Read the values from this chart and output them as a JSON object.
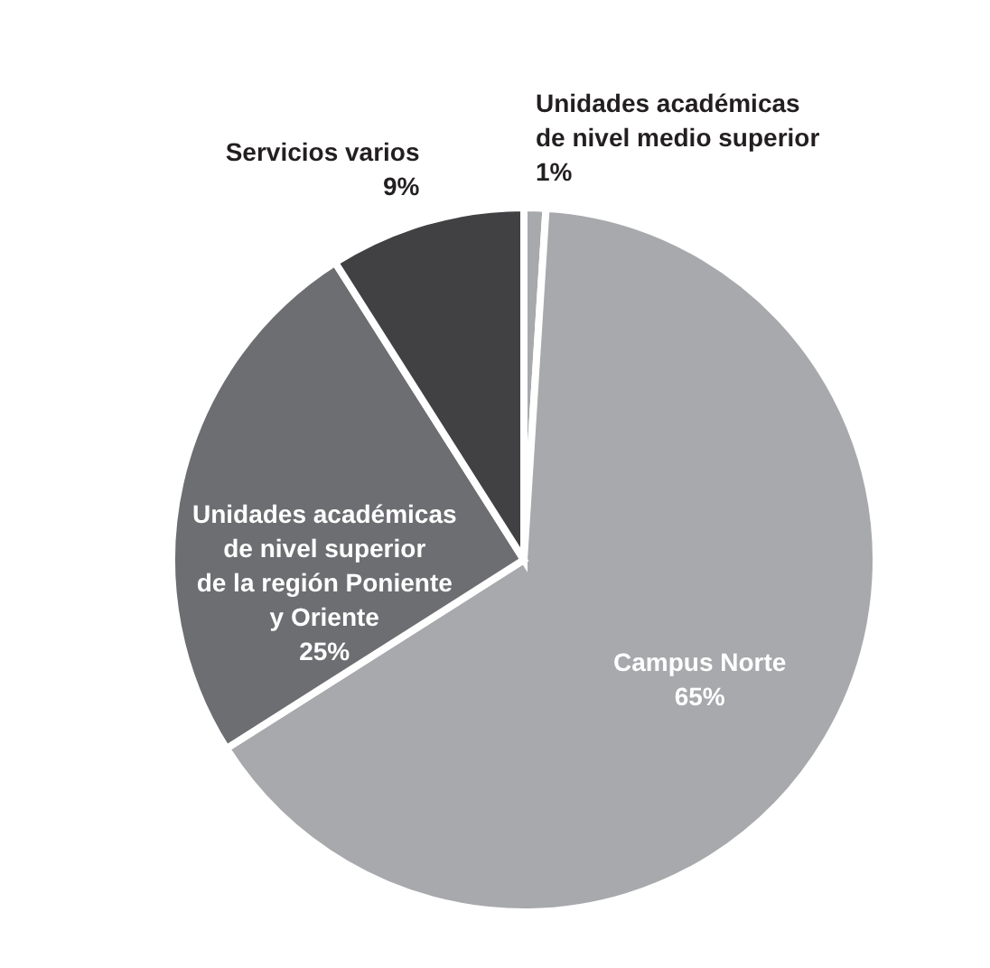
{
  "chart_data": {
    "type": "pie",
    "categories": [
      "Unidades académicas\nde nivel medio superior",
      "Campus Norte",
      "Unidades académicas\nde nivel superior\nde la región Poniente\ny Oriente",
      "Servicios varios"
    ],
    "values": [
      1,
      65,
      25,
      9
    ],
    "value_labels": [
      "1%",
      "65%",
      "25%",
      "9%"
    ],
    "colors": [
      "#a7a9ac",
      "#a7a9ac",
      "#6d6e71",
      "#414042"
    ]
  }
}
